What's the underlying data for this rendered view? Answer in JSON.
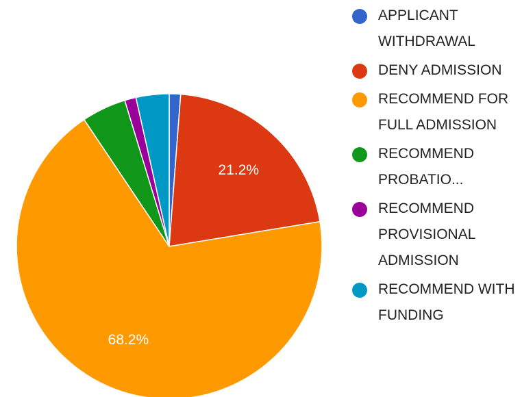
{
  "chart_data": {
    "type": "pie",
    "categories": [
      "APPLICANT WITHDRAWAL",
      "DENY ADMISSION",
      "RECOMMEND FOR FULL ADMISSION",
      "RECOMMEND PROBATIO...",
      "RECOMMEND PROVISIONAL ADMISSION",
      "RECOMMEND WITH FUNDING"
    ],
    "values": [
      1.2,
      21.2,
      68.2,
      4.7,
      1.2,
      3.5
    ],
    "value_labels": [
      null,
      "21.2%",
      "68.2%",
      null,
      null,
      null
    ],
    "colors": [
      "#3366cc",
      "#dc3912",
      "#ff9900",
      "#109618",
      "#990099",
      "#0099c6"
    ],
    "legend": "right"
  }
}
